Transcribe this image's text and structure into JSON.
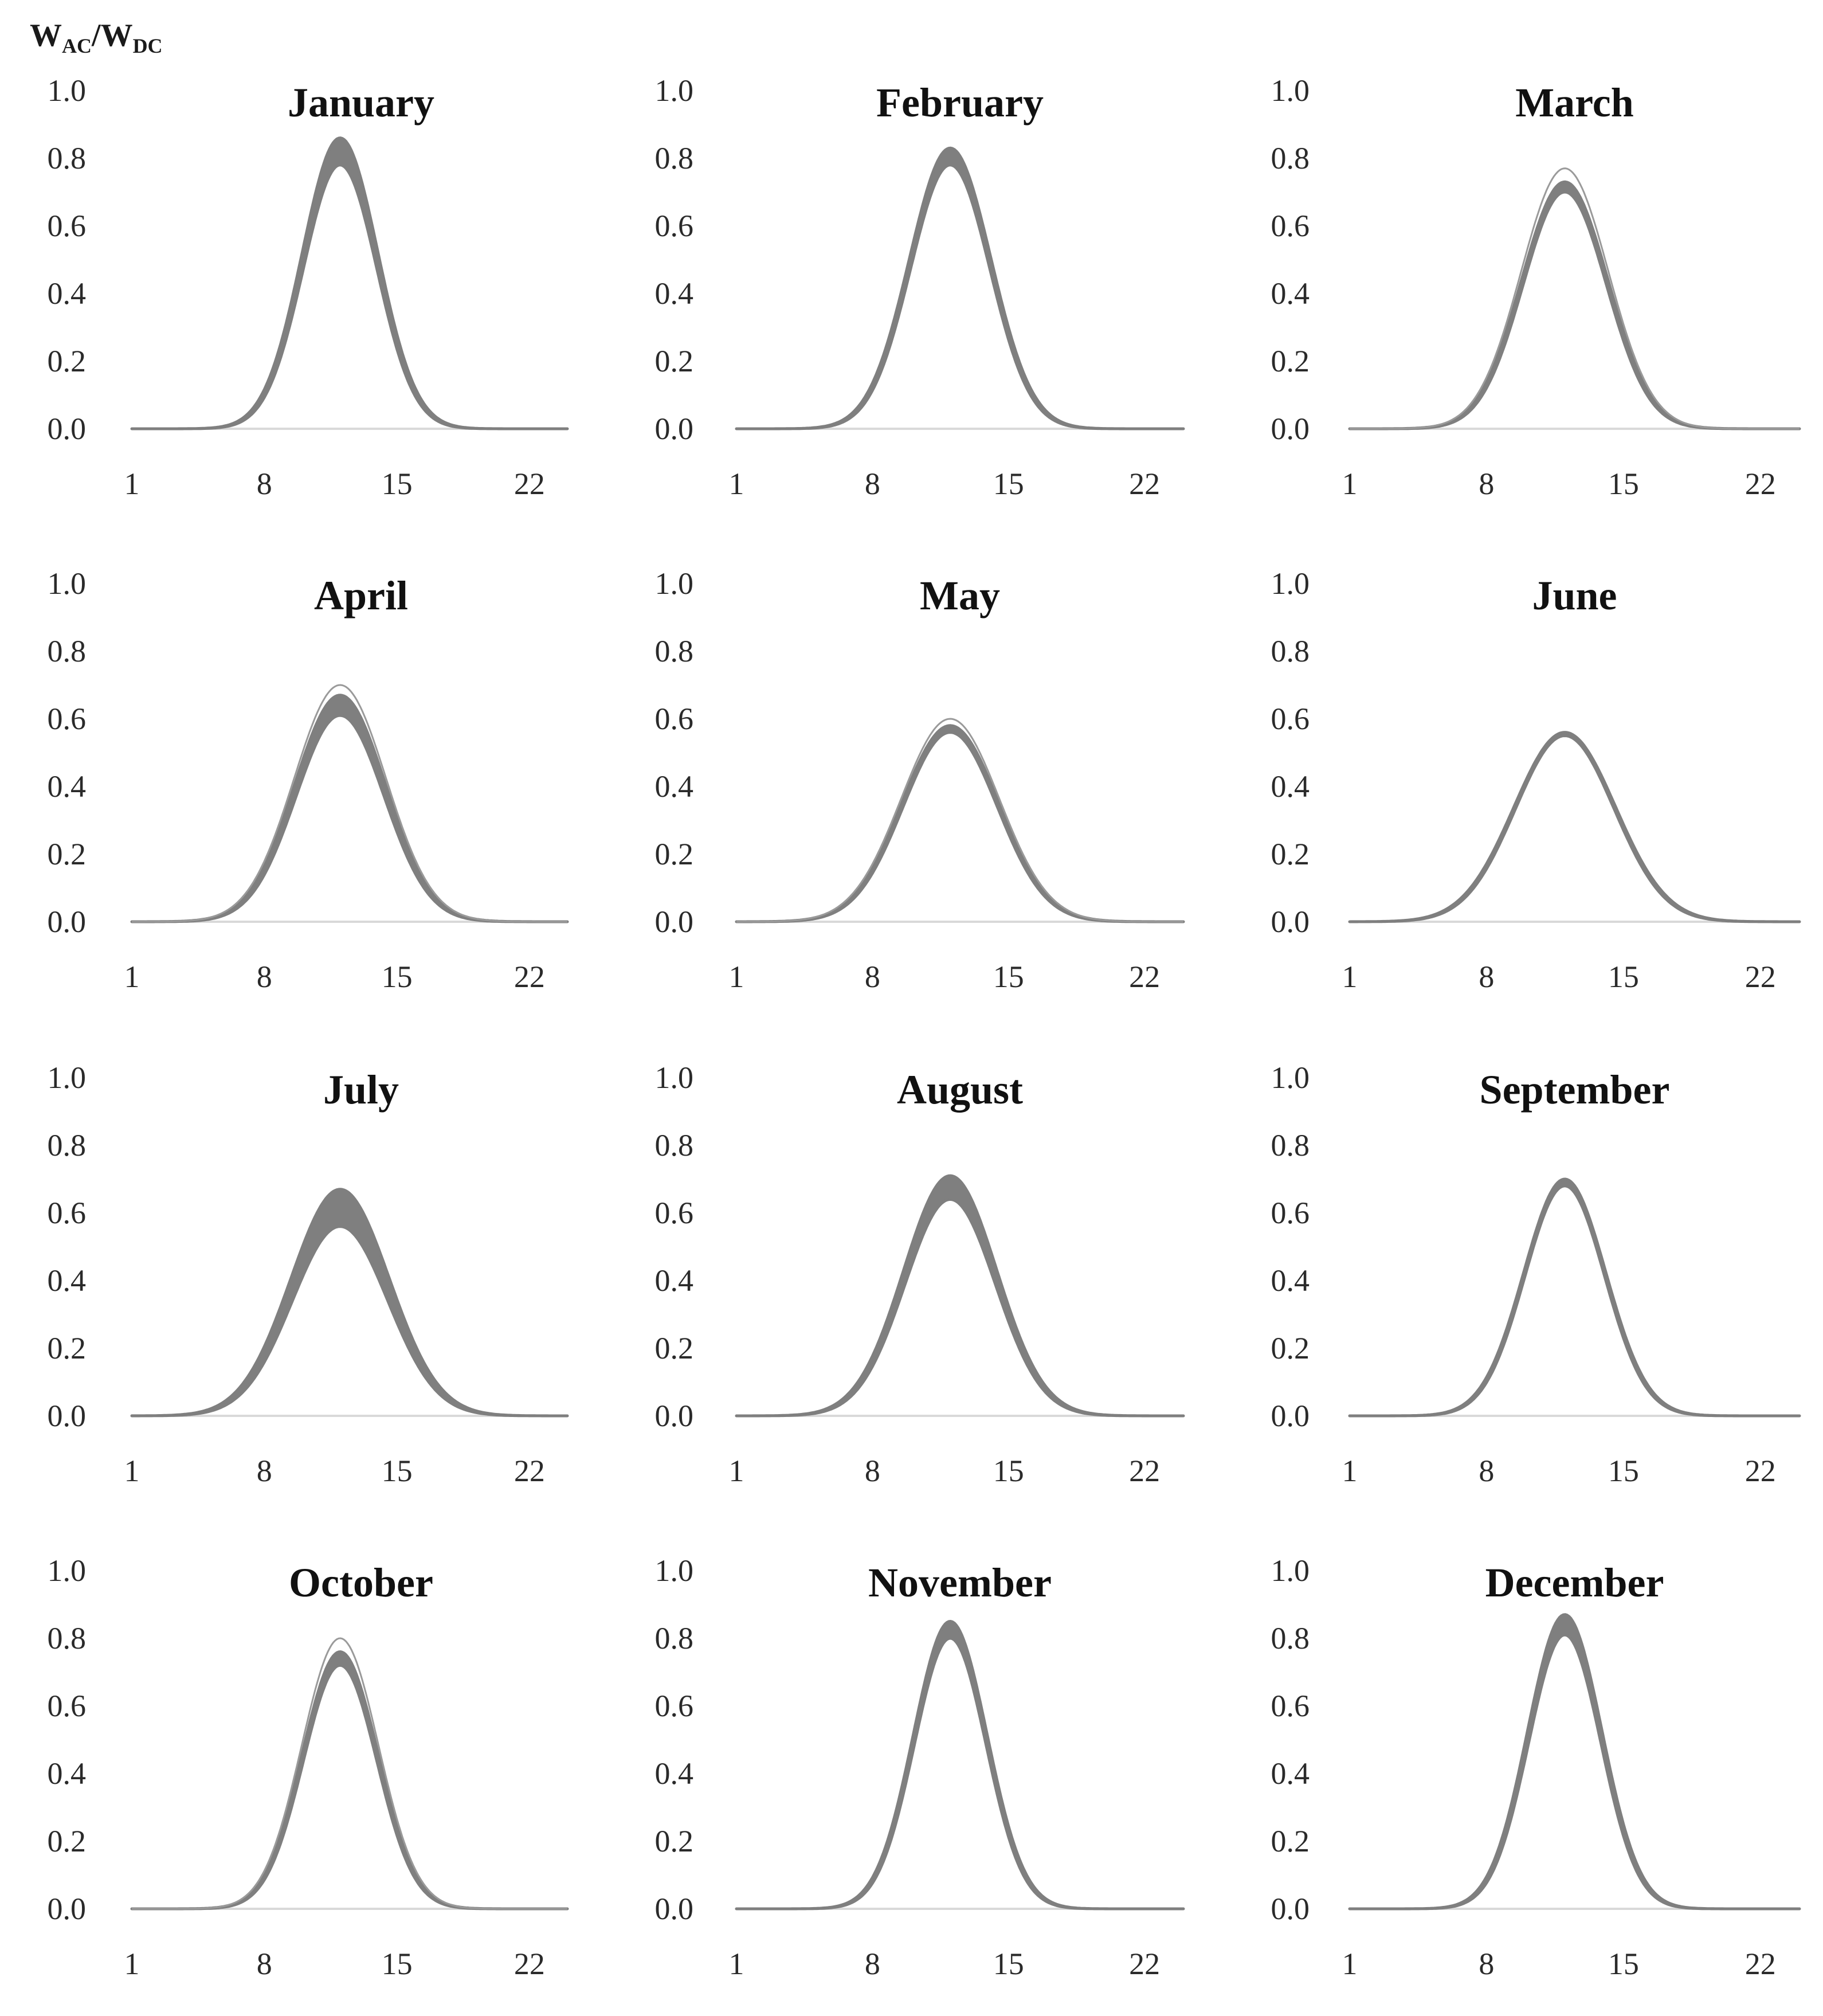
{
  "figure": {
    "y_axis_label": {
      "main": "W",
      "sub1": "AC",
      "slash": "/",
      "main2": "W",
      "sub2": "DC"
    },
    "style": {
      "curve_color": "#7f7f7f",
      "outline_color": "#9a9a9a",
      "axis_color": "#d9d9d9"
    }
  },
  "chart_data": [
    {
      "type": "area",
      "title": "January",
      "x_ticks": [
        1,
        8,
        15,
        22
      ],
      "y_ticks": [
        "0.0",
        "0.2",
        "0.4",
        "0.6",
        "0.8",
        "1.0"
      ],
      "ylim": [
        0,
        1
      ],
      "xlim": [
        1,
        24
      ],
      "peak_hour": 12,
      "spread_hours": 2.0,
      "band_low_peak": 0.78,
      "band_high_peak": 0.86,
      "outlier_peak": null
    },
    {
      "type": "area",
      "title": "February",
      "x_ticks": [
        1,
        8,
        15,
        22
      ],
      "y_ticks": [
        "0.0",
        "0.2",
        "0.4",
        "0.6",
        "0.8",
        "1.0"
      ],
      "ylim": [
        0,
        1
      ],
      "xlim": [
        1,
        24
      ],
      "peak_hour": 12,
      "spread_hours": 2.1,
      "band_low_peak": 0.78,
      "band_high_peak": 0.83,
      "outlier_peak": null
    },
    {
      "type": "area",
      "title": "March",
      "x_ticks": [
        1,
        8,
        15,
        22
      ],
      "y_ticks": [
        "0.0",
        "0.2",
        "0.4",
        "0.6",
        "0.8",
        "1.0"
      ],
      "ylim": [
        0,
        1
      ],
      "xlim": [
        1,
        24
      ],
      "peak_hour": 12,
      "spread_hours": 2.2,
      "band_low_peak": 0.7,
      "band_high_peak": 0.73,
      "outlier_peak": 0.77
    },
    {
      "type": "area",
      "title": "April",
      "x_ticks": [
        1,
        8,
        15,
        22
      ],
      "y_ticks": [
        "0.0",
        "0.2",
        "0.4",
        "0.6",
        "0.8",
        "1.0"
      ],
      "ylim": [
        0,
        1
      ],
      "xlim": [
        1,
        24
      ],
      "peak_hour": 12,
      "spread_hours": 2.4,
      "band_low_peak": 0.61,
      "band_high_peak": 0.67,
      "outlier_peak": 0.7
    },
    {
      "type": "area",
      "title": "May",
      "x_ticks": [
        1,
        8,
        15,
        22
      ],
      "y_ticks": [
        "0.0",
        "0.2",
        "0.4",
        "0.6",
        "0.8",
        "1.0"
      ],
      "ylim": [
        0,
        1
      ],
      "xlim": [
        1,
        24
      ],
      "peak_hour": 12,
      "spread_hours": 2.5,
      "band_low_peak": 0.56,
      "band_high_peak": 0.58,
      "outlier_peak": 0.6
    },
    {
      "type": "area",
      "title": "June",
      "x_ticks": [
        1,
        8,
        15,
        22
      ],
      "y_ticks": [
        "0.0",
        "0.2",
        "0.4",
        "0.6",
        "0.8",
        "1.0"
      ],
      "ylim": [
        0,
        1
      ],
      "xlim": [
        1,
        24
      ],
      "peak_hour": 12,
      "spread_hours": 2.6,
      "band_low_peak": 0.55,
      "band_high_peak": 0.56,
      "outlier_peak": null
    },
    {
      "type": "area",
      "title": "July",
      "x_ticks": [
        1,
        8,
        15,
        22
      ],
      "y_ticks": [
        "0.0",
        "0.2",
        "0.4",
        "0.6",
        "0.8",
        "1.0"
      ],
      "ylim": [
        0,
        1
      ],
      "xlim": [
        1,
        24
      ],
      "peak_hour": 12,
      "spread_hours": 2.6,
      "band_low_peak": 0.56,
      "band_high_peak": 0.67,
      "outlier_peak": null
    },
    {
      "type": "area",
      "title": "August",
      "x_ticks": [
        1,
        8,
        15,
        22
      ],
      "y_ticks": [
        "0.0",
        "0.2",
        "0.4",
        "0.6",
        "0.8",
        "1.0"
      ],
      "ylim": [
        0,
        1
      ],
      "xlim": [
        1,
        24
      ],
      "peak_hour": 12,
      "spread_hours": 2.4,
      "band_low_peak": 0.64,
      "band_high_peak": 0.71,
      "outlier_peak": null
    },
    {
      "type": "area",
      "title": "September",
      "x_ticks": [
        1,
        8,
        15,
        22
      ],
      "y_ticks": [
        "0.0",
        "0.2",
        "0.4",
        "0.6",
        "0.8",
        "1.0"
      ],
      "ylim": [
        0,
        1
      ],
      "xlim": [
        1,
        24
      ],
      "peak_hour": 12,
      "spread_hours": 2.1,
      "band_low_peak": 0.68,
      "band_high_peak": 0.7,
      "outlier_peak": null
    },
    {
      "type": "area",
      "title": "October",
      "x_ticks": [
        1,
        8,
        15,
        22
      ],
      "y_ticks": [
        "0.0",
        "0.2",
        "0.4",
        "0.6",
        "0.8",
        "1.0"
      ],
      "ylim": [
        0,
        1
      ],
      "xlim": [
        1,
        24
      ],
      "peak_hour": 12,
      "spread_hours": 2.0,
      "band_low_peak": 0.72,
      "band_high_peak": 0.76,
      "outlier_peak": 0.8
    },
    {
      "type": "area",
      "title": "November",
      "x_ticks": [
        1,
        8,
        15,
        22
      ],
      "y_ticks": [
        "0.0",
        "0.2",
        "0.4",
        "0.6",
        "0.8",
        "1.0"
      ],
      "ylim": [
        0,
        1
      ],
      "xlim": [
        1,
        24
      ],
      "peak_hour": 12,
      "spread_hours": 1.9,
      "band_low_peak": 0.8,
      "band_high_peak": 0.85,
      "outlier_peak": null
    },
    {
      "type": "area",
      "title": "December",
      "x_ticks": [
        1,
        8,
        15,
        22
      ],
      "y_ticks": [
        "0.0",
        "0.2",
        "0.4",
        "0.6",
        "0.8",
        "1.0"
      ],
      "ylim": [
        0,
        1
      ],
      "xlim": [
        1,
        24
      ],
      "peak_hour": 12,
      "spread_hours": 1.9,
      "band_low_peak": 0.81,
      "band_high_peak": 0.87,
      "outlier_peak": null
    }
  ]
}
